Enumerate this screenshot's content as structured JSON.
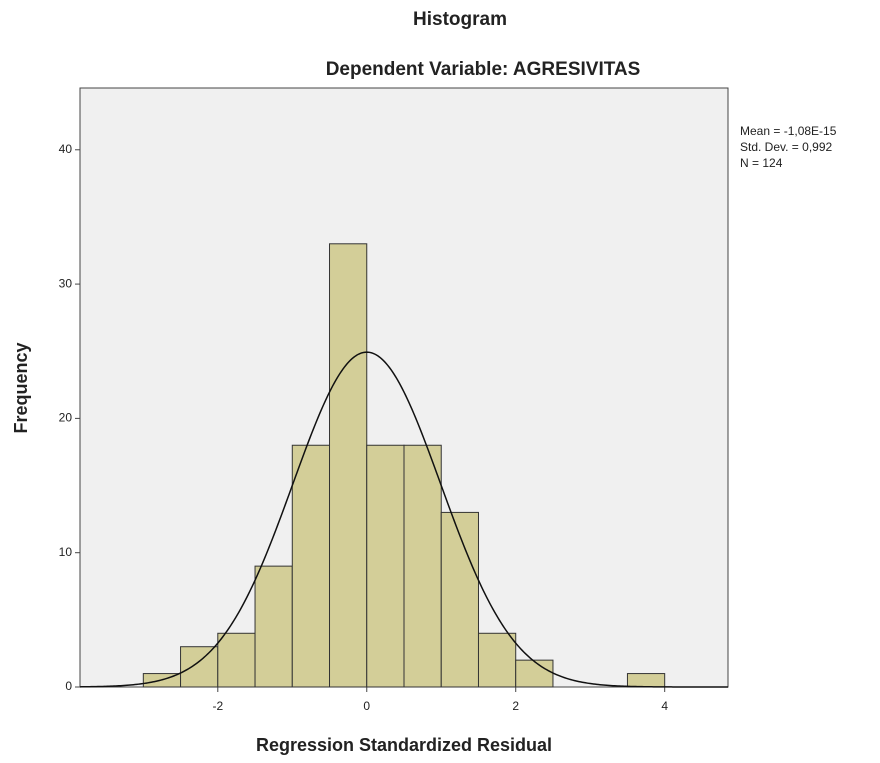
{
  "chart_data": {
    "type": "histogram",
    "title": "Histogram",
    "subtitle": "Dependent Variable: AGRESIVITAS",
    "xlabel": "Regression Standardized Residual",
    "ylabel": "Frequency",
    "bins": [
      -3,
      -2.5,
      -2,
      -1.5,
      -1,
      -0.5,
      0,
      0.5,
      1,
      1.5,
      2,
      2.5,
      3,
      3.5,
      4
    ],
    "values": [
      1,
      3,
      4,
      9,
      18,
      33,
      18,
      18,
      13,
      4,
      2,
      0,
      0,
      1
    ],
    "color": "#d3ce98",
    "xlim": [
      -3.85,
      4.85
    ],
    "xticks": [
      -2,
      0,
      2,
      4
    ],
    "ylim": [
      0,
      44.6
    ],
    "yticks": [
      0,
      10,
      20,
      30,
      40
    ],
    "stats": [
      {
        "value": -1.08e-15,
        "label": "Mean = -1,08E-15"
      },
      {
        "value": 0.992,
        "label": "Std. Dev. = 0,992"
      },
      {
        "value": 124,
        "label": "N = 124"
      }
    ]
  }
}
